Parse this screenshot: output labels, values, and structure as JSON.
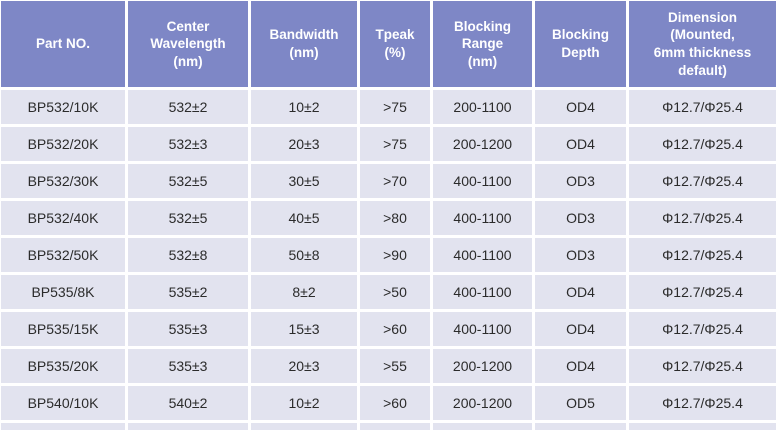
{
  "colors": {
    "header_bg": "#7e87c6",
    "header_text": "#ffffff",
    "row_bg": "#e2e3ef",
    "cell_text": "#2b2b2b",
    "gridline": "#ffffff"
  },
  "chart_data": {
    "type": "table",
    "title": "",
    "columns": [
      "Part NO.",
      "Center Wavelength (nm)",
      "Bandwidth (nm)",
      "Tpeak (%)",
      "Blocking Range (nm)",
      "Blocking Depth",
      "Dimension (Mounted, 6mm thickness default)"
    ],
    "header_lines": [
      "Part NO.",
      "Center\nWavelength\n(nm)",
      "Bandwidth\n(nm)",
      "Tpeak\n(%)",
      "Blocking\nRange\n(nm)",
      "Blocking\nDepth",
      "Dimension\n(Mounted,\n6mm thickness\ndefault)"
    ],
    "rows": [
      [
        "BP532/10K",
        "532±2",
        "10±2",
        ">75",
        "200-1100",
        "OD4",
        "Φ12.7/Φ25.4"
      ],
      [
        "BP532/20K",
        "532±3",
        "20±3",
        ">75",
        "200-1200",
        "OD4",
        "Φ12.7/Φ25.4"
      ],
      [
        "BP532/30K",
        "532±5",
        "30±5",
        ">70",
        "400-1100",
        "OD3",
        "Φ12.7/Φ25.4"
      ],
      [
        "BP532/40K",
        "532±5",
        "40±5",
        ">80",
        "400-1100",
        "OD3",
        "Φ12.7/Φ25.4"
      ],
      [
        "BP532/50K",
        "532±8",
        "50±8",
        ">90",
        "400-1100",
        "OD3",
        "Φ12.7/Φ25.4"
      ],
      [
        "BP535/8K",
        "535±2",
        "8±2",
        ">50",
        "400-1100",
        "OD4",
        "Φ12.7/Φ25.4"
      ],
      [
        "BP535/15K",
        "535±3",
        "15±3",
        ">60",
        "400-1100",
        "OD4",
        "Φ12.7/Φ25.4"
      ],
      [
        "BP535/20K",
        "535±3",
        "20±3",
        ">55",
        "200-1200",
        "OD4",
        "Φ12.7/Φ25.4"
      ],
      [
        "BP540/10K",
        "540±2",
        "10±2",
        ">60",
        "200-1200",
        "OD5",
        "Φ12.7/Φ25.4"
      ]
    ]
  }
}
